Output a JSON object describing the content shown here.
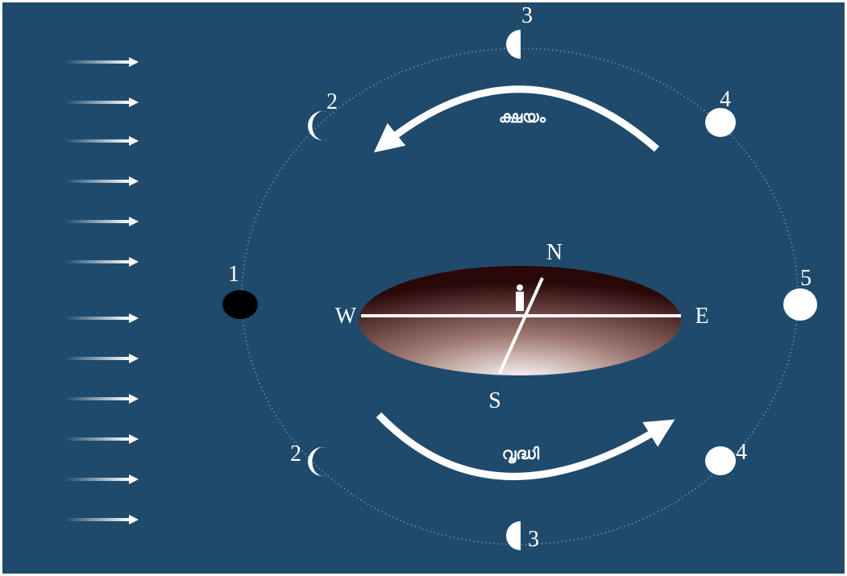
{
  "moon_labels": {
    "new": "1",
    "upper_crescent": "2",
    "upper_half": "3",
    "upper_gibbous": "4",
    "full": "5",
    "lower_crescent": "2",
    "lower_half": "3",
    "lower_gibbous": "4"
  },
  "directions": {
    "north": "N",
    "south": "S",
    "east": "E",
    "west": "W"
  },
  "phases": {
    "waning": "ക്ഷയം",
    "waxing": "വൃദ്ധി"
  }
}
